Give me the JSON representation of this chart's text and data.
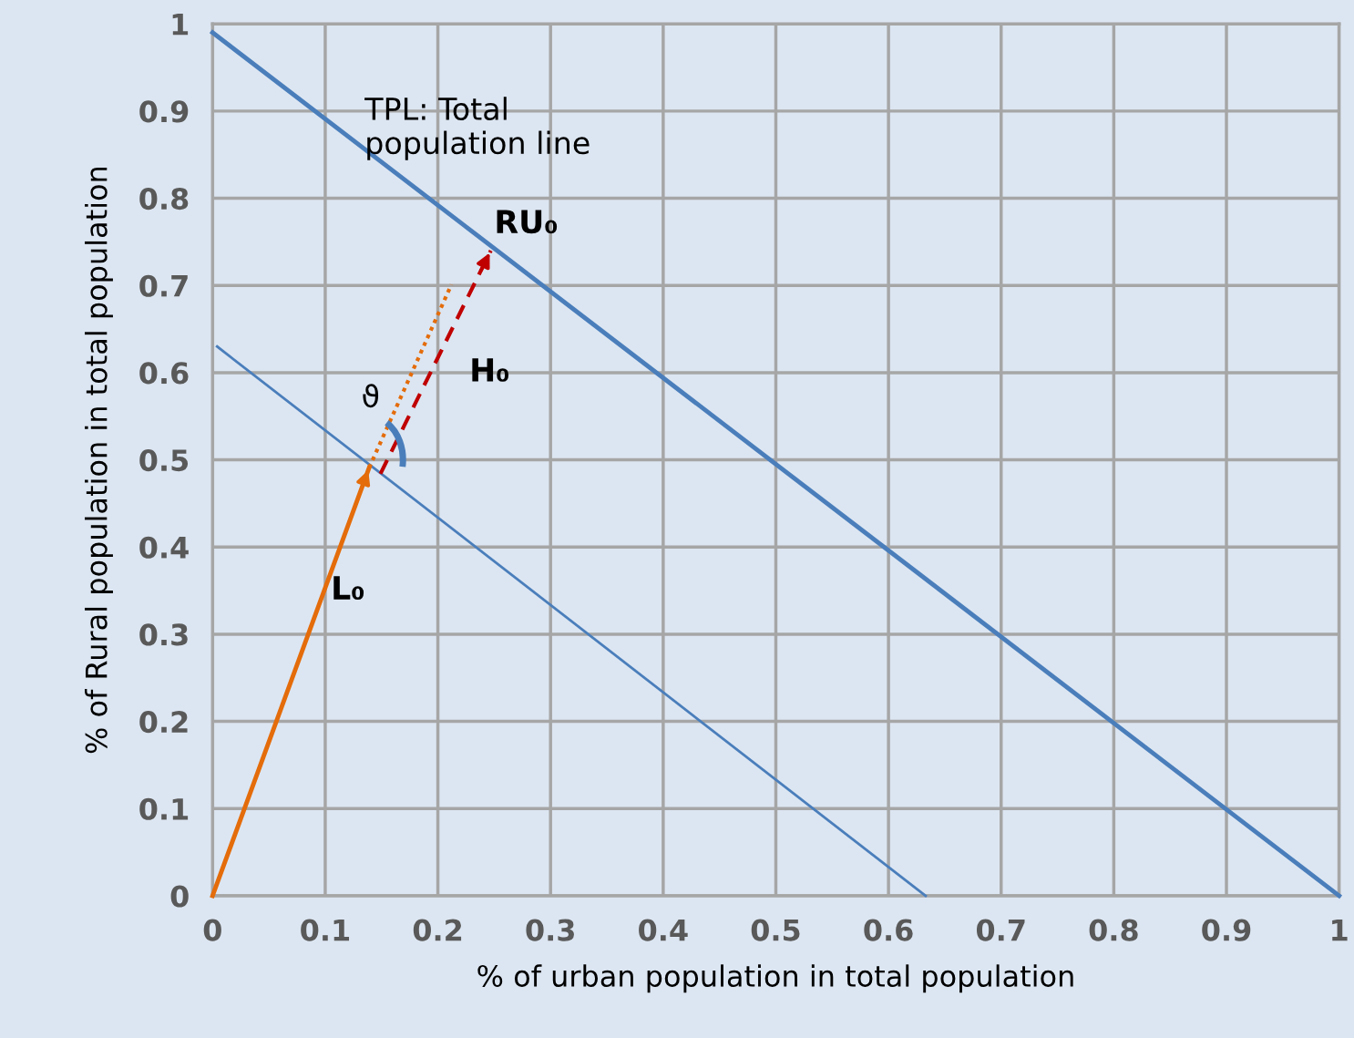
{
  "chart_data": {
    "type": "line",
    "xlabel": "% of urban population in total population",
    "ylabel": "% of Rural population in total population",
    "xlim": [
      0,
      1
    ],
    "ylim": [
      0,
      1
    ],
    "xticks": [
      0,
      0.1,
      0.2,
      0.3,
      0.4,
      0.5,
      0.6,
      0.7,
      0.8,
      0.9,
      1
    ],
    "yticks": [
      0,
      0.1,
      0.2,
      0.3,
      0.4,
      0.5,
      0.6,
      0.7,
      0.8,
      0.9,
      1
    ],
    "grid": true,
    "legend": false,
    "marker": "none",
    "series": [
      {
        "color": "#4a7ebb",
        "x": [
          0,
          1
        ],
        "values": [
          0.99,
          0
        ],
        "line_style": "solid"
      },
      {
        "color": "#4a7ebb",
        "x": [
          0.004,
          0.633
        ],
        "values": [
          0.63,
          0
        ],
        "line_style": "solid"
      },
      {
        "color": "#e46c0a",
        "x": [
          0,
          0.139
        ],
        "values": [
          0,
          0.491
        ],
        "line_style": "solid"
      },
      {
        "color": "#e46c0a",
        "x": [
          0.139,
          0.212
        ],
        "values": [
          0.491,
          0.701
        ],
        "line_style": "dotted"
      },
      {
        "color": "#c00000",
        "x": [
          0.149,
          0.247
        ],
        "values": [
          0.484,
          0.74
        ],
        "line_style": "dashed"
      }
    ],
    "annotations": [
      "TPL: Total\npopulation line",
      "RU₀",
      "H₀",
      "L₀",
      "ϑ"
    ]
  }
}
